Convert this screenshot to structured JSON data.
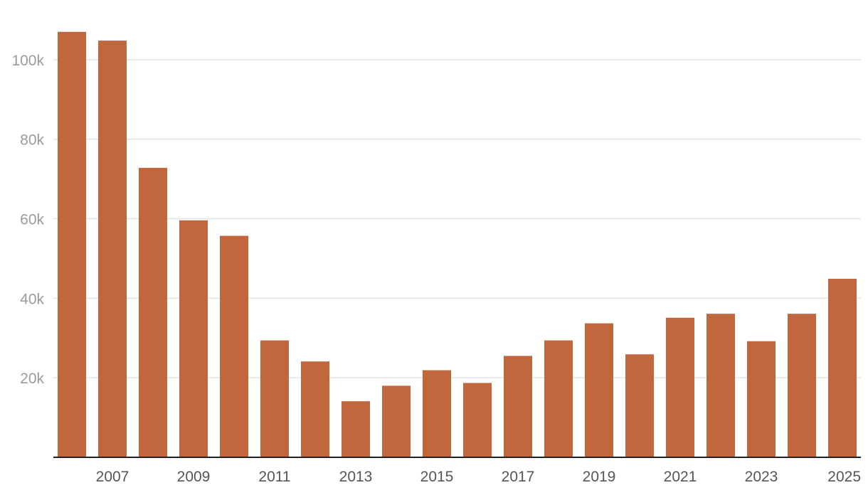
{
  "chart_data": {
    "type": "bar",
    "categories": [
      "2006",
      "2007",
      "2008",
      "2009",
      "2010",
      "2011",
      "2012",
      "2013",
      "2014",
      "2015",
      "2016",
      "2017",
      "2018",
      "2019",
      "2020",
      "2021",
      "2022",
      "2023",
      "2024",
      "2025"
    ],
    "values": [
      107000,
      104800,
      72800,
      59600,
      55700,
      29400,
      24100,
      14100,
      18000,
      21900,
      18700,
      25500,
      29400,
      33700,
      25900,
      35100,
      36100,
      29200,
      36100,
      44900
    ],
    "x_tick_labels": [
      "2007",
      "2009",
      "2011",
      "2013",
      "2015",
      "2017",
      "2019",
      "2021",
      "2023",
      "2025"
    ],
    "y_ticks": [
      {
        "value": 20000,
        "label": "20k"
      },
      {
        "value": 40000,
        "label": "40k"
      },
      {
        "value": 60000,
        "label": "60k"
      },
      {
        "value": 80000,
        "label": "80k"
      },
      {
        "value": 100000,
        "label": "100k"
      }
    ],
    "ylim": [
      0,
      110000
    ],
    "grid": true,
    "bar_color": "#c0673e",
    "title": "",
    "xlabel": "",
    "ylabel": ""
  }
}
